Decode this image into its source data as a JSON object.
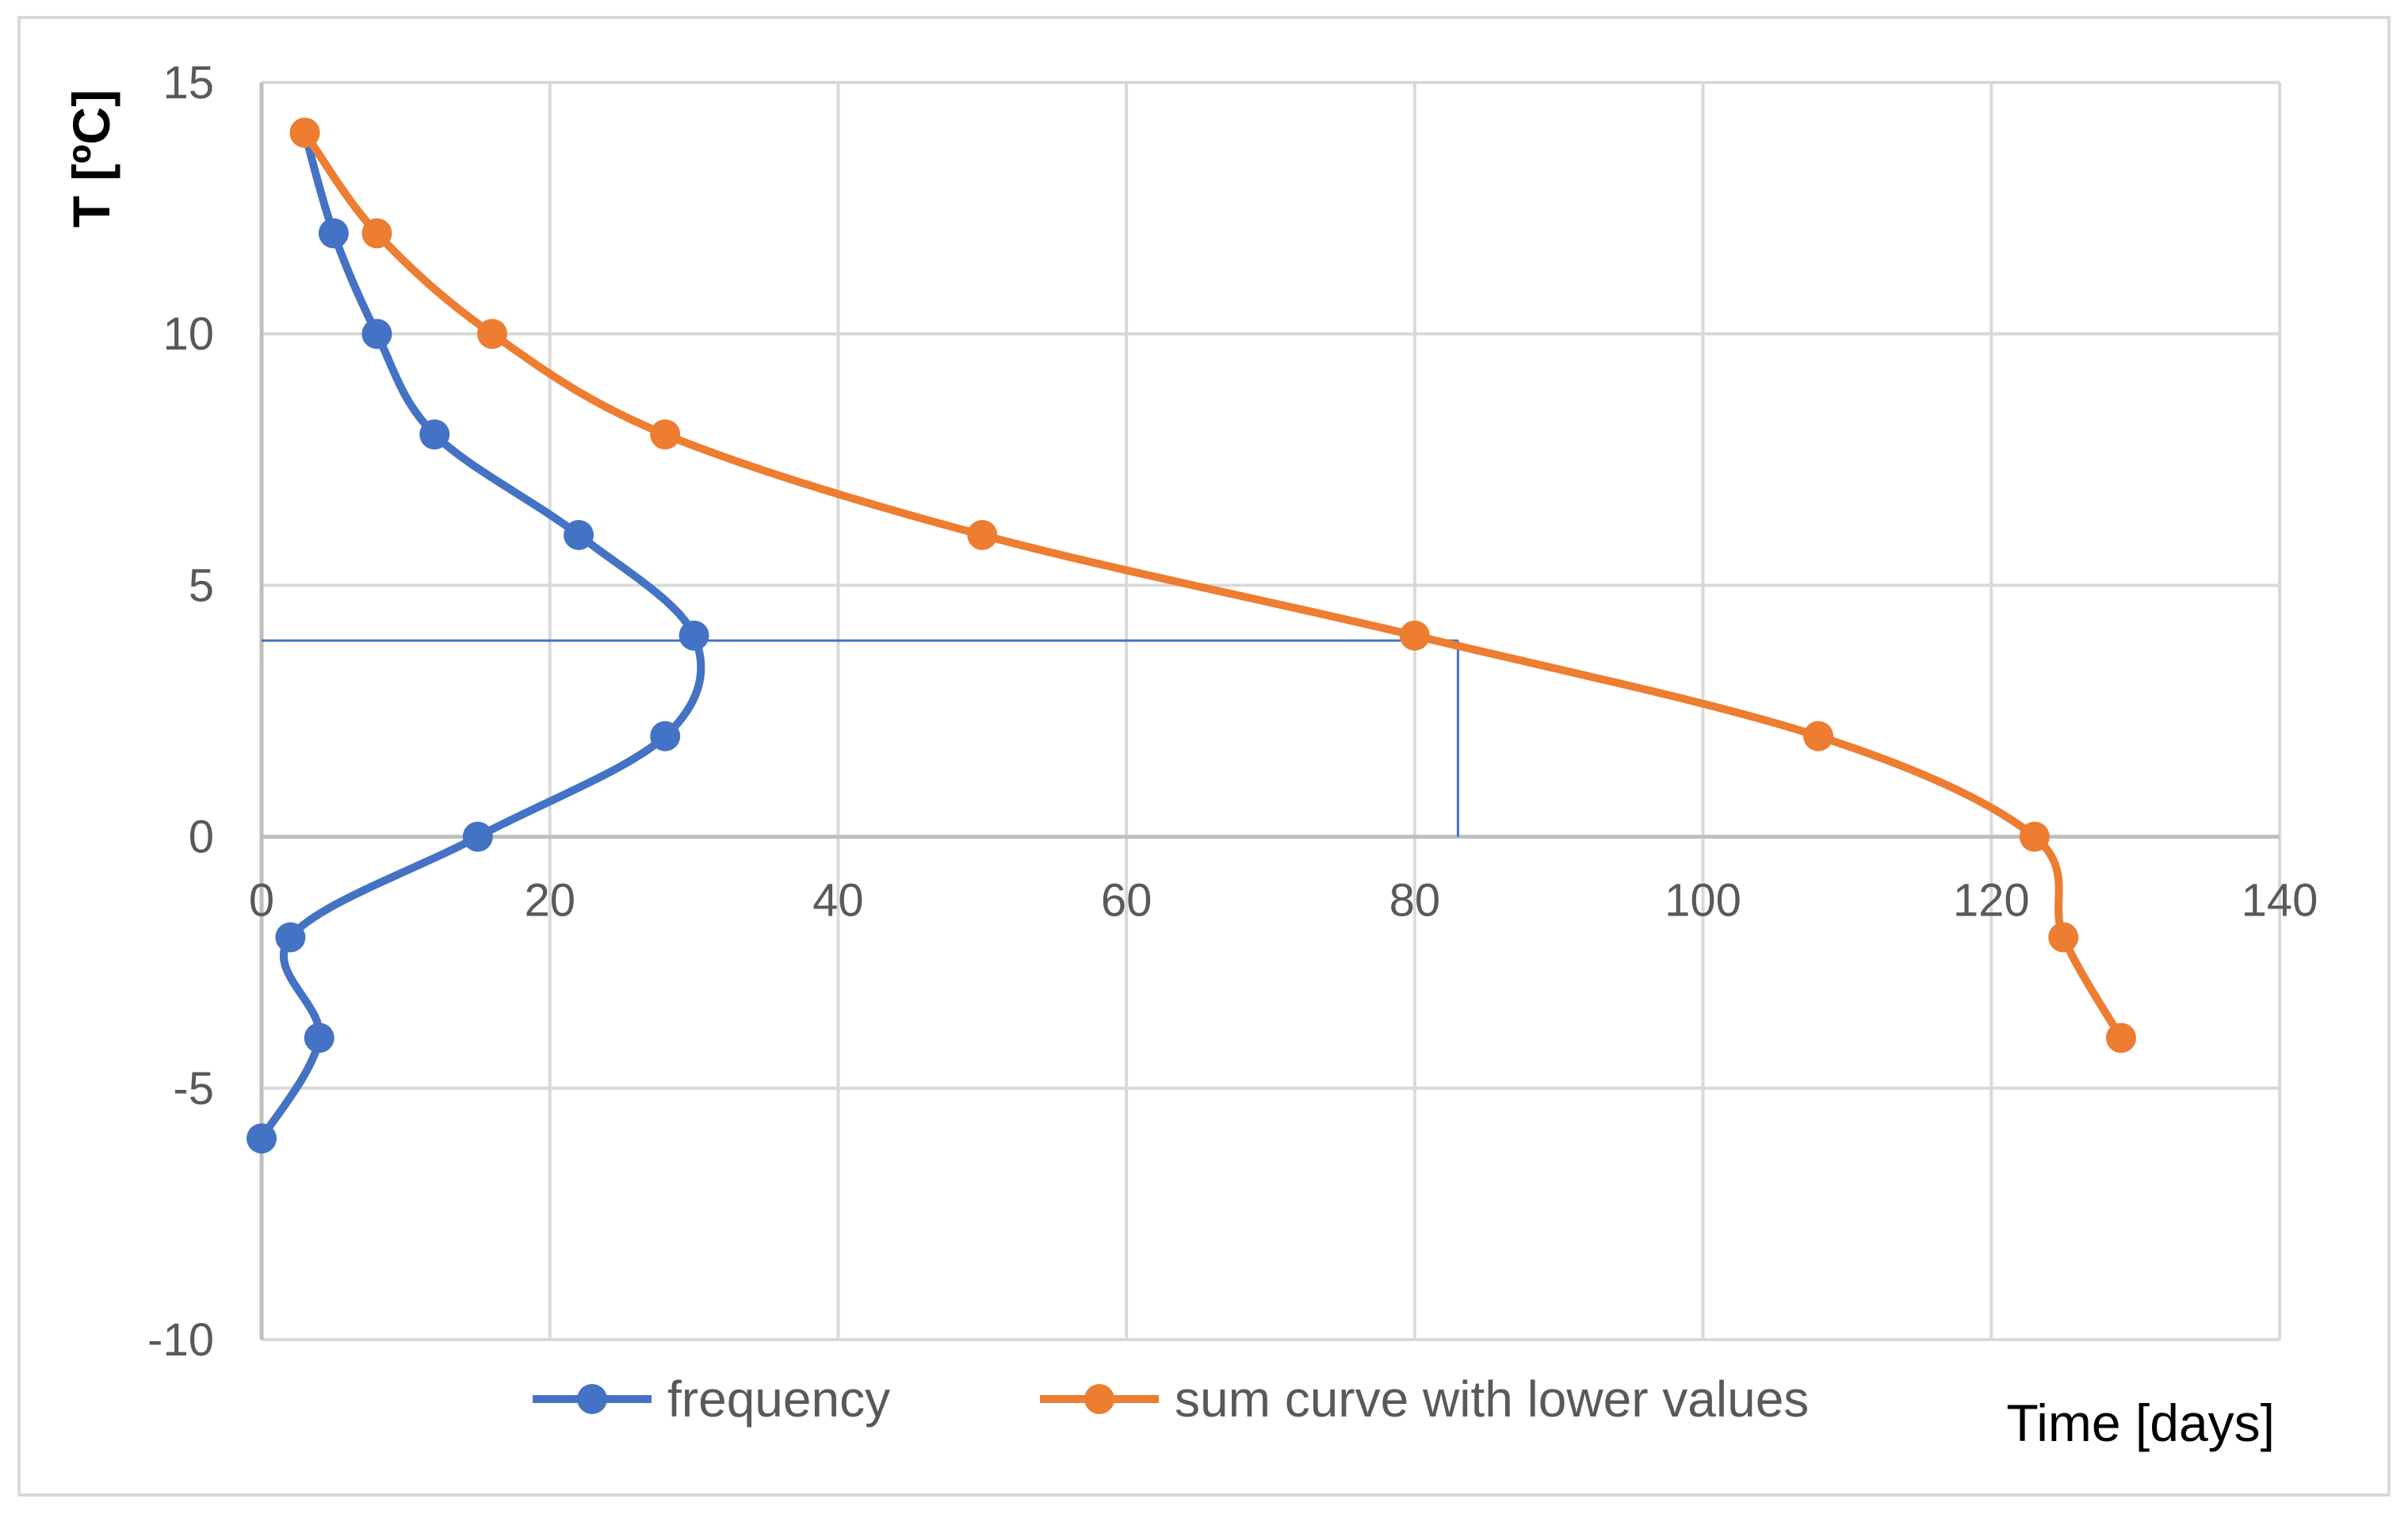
{
  "chart_data": {
    "type": "line",
    "title": "",
    "xlabel": "Time [days]",
    "ylabel": "T [ºC]",
    "xlim": [
      0,
      140
    ],
    "ylim": [
      -10,
      15
    ],
    "x_ticks": [
      "0",
      "20",
      "40",
      "60",
      "80",
      "100",
      "120",
      "140"
    ],
    "y_ticks": [
      "15",
      "10",
      "5",
      "0",
      "-5",
      "-10"
    ],
    "grid": true,
    "legend_position": "bottom",
    "series": [
      {
        "name": "frequency",
        "color": "#4472c4",
        "points": [
          {
            "x": 3,
            "y": 14
          },
          {
            "x": 5,
            "y": 12
          },
          {
            "x": 8,
            "y": 10
          },
          {
            "x": 12,
            "y": 8
          },
          {
            "x": 22,
            "y": 6
          },
          {
            "x": 30,
            "y": 4
          },
          {
            "x": 28,
            "y": 2
          },
          {
            "x": 15,
            "y": 0
          },
          {
            "x": 2,
            "y": -2
          },
          {
            "x": 4,
            "y": -4
          },
          {
            "x": 0,
            "y": -6
          }
        ]
      },
      {
        "name": "sum curve with lower values",
        "color": "#ed7d31",
        "points": [
          {
            "x": 3,
            "y": 14
          },
          {
            "x": 8,
            "y": 12
          },
          {
            "x": 16,
            "y": 10
          },
          {
            "x": 28,
            "y": 8
          },
          {
            "x": 50,
            "y": 6
          },
          {
            "x": 80,
            "y": 4
          },
          {
            "x": 108,
            "y": 2
          },
          {
            "x": 123,
            "y": 0
          },
          {
            "x": 125,
            "y": -2
          },
          {
            "x": 129,
            "y": -4
          }
        ]
      }
    ],
    "annotations": [
      {
        "type": "hline",
        "y": 3.9,
        "x_from": 0,
        "x_to": 83,
        "color": "#4472c4"
      },
      {
        "type": "vline",
        "x": 83,
        "y_from": 3.9,
        "y_to": 0,
        "color": "#4472c4"
      }
    ]
  }
}
